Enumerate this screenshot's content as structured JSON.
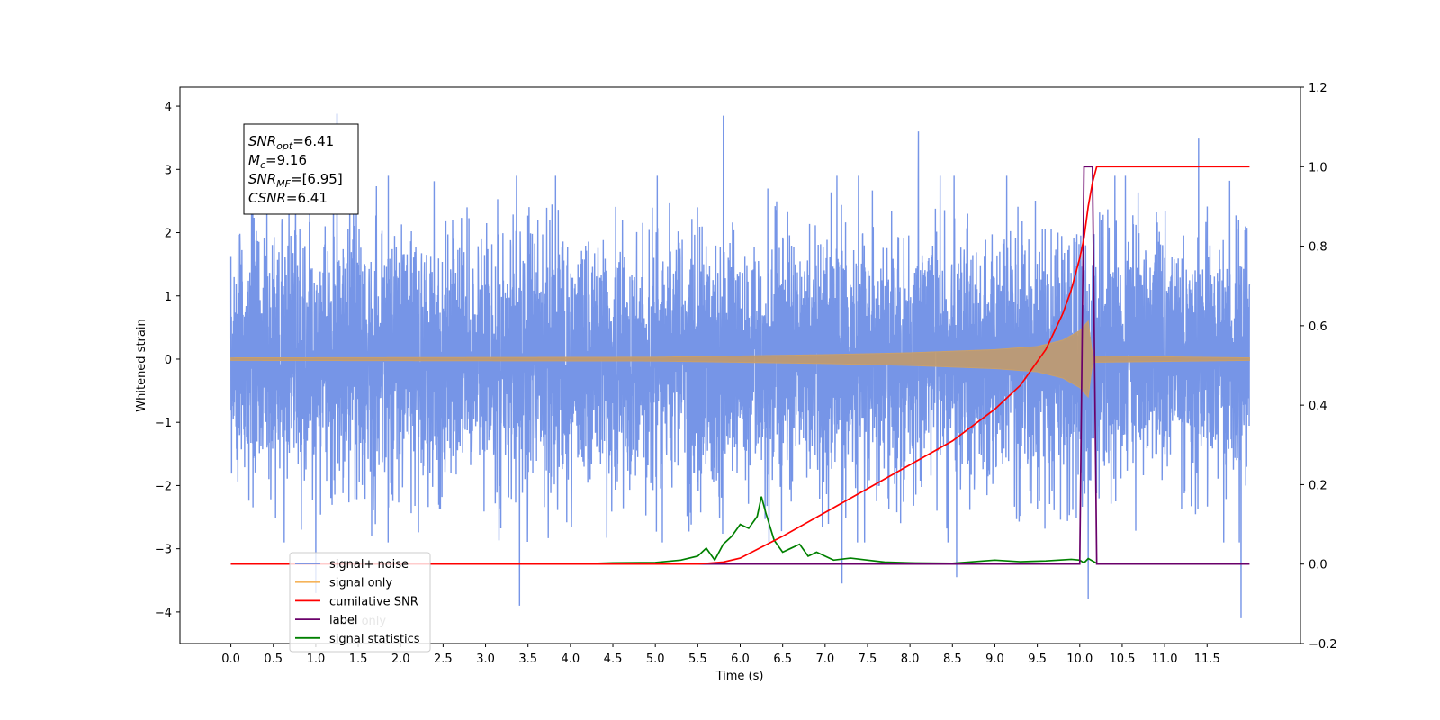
{
  "chart_data": {
    "type": "line",
    "xlabel": "Time (s)",
    "ylabel": "Whitened strain",
    "xlim": [
      -0.6,
      12.6
    ],
    "ylim": [
      -4.5,
      4.3
    ],
    "y2lim": [
      -0.2,
      1.2
    ],
    "x_ticks": [
      "0.0",
      "0.5",
      "1.0",
      "1.5",
      "2.0",
      "2.5",
      "3.0",
      "3.5",
      "4.0",
      "4.5",
      "5.0",
      "5.5",
      "6.0",
      "6.5",
      "7.0",
      "7.5",
      "8.0",
      "8.5",
      "9.0",
      "9.5",
      "10.0",
      "10.5",
      "11.0",
      "11.5"
    ],
    "y_ticks": [
      "−4",
      "−3",
      "−2",
      "−1",
      "0",
      "1",
      "2",
      "3",
      "4"
    ],
    "y2_ticks": [
      "−0.2",
      "0.0",
      "0.2",
      "0.4",
      "0.6",
      "0.8",
      "1.0",
      "1.2"
    ],
    "annotation": {
      "lines": [
        {
          "sym": "SNR",
          "sub": "opt",
          "value": "=6.41"
        },
        {
          "sym": "M",
          "sub": "c",
          "value": "=9.16"
        },
        {
          "sym": "SNR",
          "sub": "MF",
          "value": "=[6.95]"
        },
        {
          "sym": "CSNR",
          "sub": "",
          "value": "=6.41"
        }
      ]
    },
    "legend": {
      "placement": "lower-left",
      "entries": [
        {
          "label": "signal+ noise",
          "color": "#6f8fe6"
        },
        {
          "label": "signal only",
          "color": "#f5b35a"
        },
        {
          "label": "cumilative SNR",
          "color": "#ff0000"
        },
        {
          "label": "label",
          "color": "#6a006a"
        },
        {
          "label": "signal statistics",
          "color": "#008000"
        }
      ],
      "hidden_text": "label only"
    },
    "series": [
      {
        "name": "signal+ noise",
        "axis": "left",
        "color": "#6f8fe6",
        "description_stats": {
          "x_range": [
            0.0,
            12.0
          ],
          "typical_range": [
            -2.2,
            2.2
          ],
          "max": 3.88,
          "min": -4.1
        },
        "peaks": [
          [
            1.25,
            3.88
          ],
          [
            5.8,
            3.85
          ],
          [
            8.1,
            3.6
          ],
          [
            11.4,
            3.5
          ],
          [
            1.0,
            -3.7
          ],
          [
            3.4,
            -3.9
          ],
          [
            11.9,
            -4.1
          ],
          [
            7.2,
            -3.55
          ],
          [
            8.55,
            -3.45
          ],
          [
            10.1,
            -3.8
          ]
        ]
      },
      {
        "name": "signal only",
        "axis": "left",
        "color": "#f5b35a",
        "envelope": [
          [
            0.0,
            0.02
          ],
          [
            5.0,
            0.03
          ],
          [
            6.0,
            0.05
          ],
          [
            7.0,
            0.07
          ],
          [
            8.0,
            0.1
          ],
          [
            9.0,
            0.15
          ],
          [
            9.5,
            0.2
          ],
          [
            9.8,
            0.3
          ],
          [
            10.0,
            0.45
          ],
          [
            10.1,
            0.6
          ],
          [
            10.15,
            0.05
          ],
          [
            12.0,
            0.02
          ]
        ]
      },
      {
        "name": "cumilative SNR",
        "axis": "right",
        "color": "#ff0000",
        "x": [
          0.0,
          5.5,
          5.8,
          6.0,
          6.5,
          7.0,
          7.5,
          8.0,
          8.5,
          9.0,
          9.3,
          9.6,
          9.8,
          9.9,
          10.0,
          10.05,
          10.1,
          10.15,
          10.2,
          12.0
        ],
        "values": [
          0.0,
          0.0,
          0.005,
          0.015,
          0.07,
          0.13,
          0.19,
          0.25,
          0.31,
          0.39,
          0.45,
          0.54,
          0.63,
          0.69,
          0.77,
          0.82,
          0.9,
          0.96,
          1.0,
          1.0
        ]
      },
      {
        "name": "label",
        "axis": "right",
        "color": "#6a006a",
        "x": [
          0.0,
          10.0,
          10.05,
          10.15,
          10.2,
          12.0
        ],
        "values": [
          0.0,
          0.0,
          1.0,
          1.0,
          0.0,
          0.0
        ]
      },
      {
        "name": "signal statistics",
        "axis": "right",
        "color": "#008000",
        "x": [
          0.0,
          4.0,
          4.5,
          5.0,
          5.3,
          5.5,
          5.6,
          5.7,
          5.8,
          5.9,
          6.0,
          6.1,
          6.2,
          6.25,
          6.3,
          6.4,
          6.5,
          6.6,
          6.7,
          6.8,
          6.9,
          7.0,
          7.1,
          7.3,
          7.5,
          7.7,
          8.0,
          8.5,
          9.0,
          9.3,
          9.6,
          9.9,
          10.0,
          10.05,
          10.1,
          10.2,
          11.0,
          11.9
        ],
        "values": [
          0.0,
          0.0,
          0.003,
          0.004,
          0.01,
          0.02,
          0.04,
          0.01,
          0.05,
          0.07,
          0.1,
          0.09,
          0.12,
          0.17,
          0.13,
          0.06,
          0.03,
          0.04,
          0.05,
          0.02,
          0.03,
          0.02,
          0.01,
          0.015,
          0.01,
          0.005,
          0.003,
          0.002,
          0.01,
          0.006,
          0.008,
          0.012,
          0.01,
          0.003,
          0.014,
          0.002,
          0.0,
          0.0
        ]
      }
    ]
  }
}
